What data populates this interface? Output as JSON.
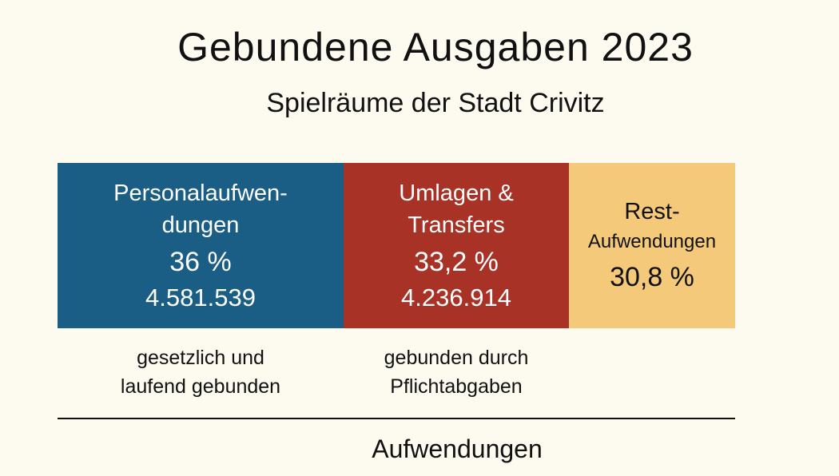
{
  "chart_data": {
    "type": "bar",
    "subtype": "100%-stacked-horizontal",
    "title": "Gebundene Ausgaben 2023",
    "subtitle": "Spielräume der Stadt Crivitz",
    "xlabel": "Aufwendungen",
    "series": [
      {
        "label_line1": "Personalaufwen-",
        "label_line2": "dungen",
        "percent": 36,
        "percent_label": "36 %",
        "amount_label": "4.581.539",
        "amount": 4581539,
        "note_line1": "gesetzlich und",
        "note_line2": "laufend gebunden",
        "color": "#1a5e86"
      },
      {
        "label_line1": "Umlagen &",
        "label_line2": "Transfers",
        "percent": 33.2,
        "percent_label": "33,2 %",
        "amount_label": "4.236.914",
        "amount": 4236914,
        "note_line1": "gebunden durch",
        "note_line2": "Pflichtabgaben",
        "color": "#a83226"
      },
      {
        "label_line1": "Rest-",
        "label_line2": "Aufwendungen",
        "percent": 30.8,
        "percent_label": "30,8 %",
        "color": "#f5c97a"
      }
    ],
    "grid": false,
    "legend": "none"
  }
}
